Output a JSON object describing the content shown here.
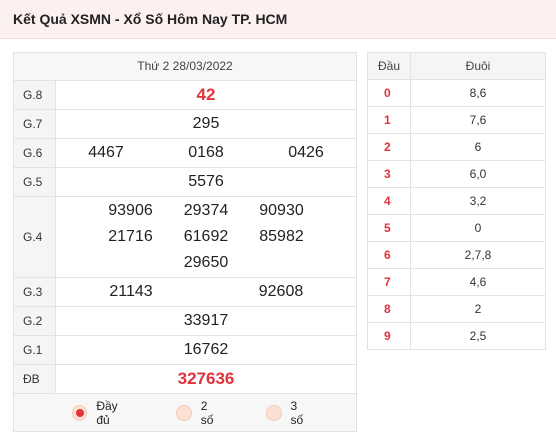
{
  "header": {
    "title": "Kết Quả XSMN - Xổ Số Hôm Nay TP. HCM"
  },
  "results": {
    "date": "Thứ 2 28/03/2022",
    "rows": [
      {
        "label": "G.8",
        "numbers": [
          "42"
        ]
      },
      {
        "label": "G.7",
        "numbers": [
          "295"
        ]
      },
      {
        "label": "G.6",
        "numbers": [
          "4467",
          "0168",
          "0426"
        ]
      },
      {
        "label": "G.5",
        "numbers": [
          "5576"
        ]
      },
      {
        "label": "G.4",
        "numbers": [
          "93906",
          "29374",
          "90930",
          "21716",
          "61692",
          "85982",
          "29650"
        ]
      },
      {
        "label": "G.3",
        "numbers": [
          "21143",
          "92608"
        ]
      },
      {
        "label": "G.2",
        "numbers": [
          "33917"
        ]
      },
      {
        "label": "G.1",
        "numbers": [
          "16762"
        ]
      },
      {
        "label": "ĐB",
        "numbers": [
          "327636"
        ]
      }
    ]
  },
  "options": [
    "Đầy đủ",
    "2 số",
    "3 số"
  ],
  "loto": {
    "headers": [
      "Đầu",
      "Đuôi"
    ],
    "rows": [
      [
        "0",
        "8,6"
      ],
      [
        "1",
        "7,6"
      ],
      [
        "2",
        "6"
      ],
      [
        "3",
        "6,0"
      ],
      [
        "4",
        "3,2"
      ],
      [
        "5",
        "0"
      ],
      [
        "6",
        "2,7,8"
      ],
      [
        "7",
        "4,6"
      ],
      [
        "8",
        "2"
      ],
      [
        "9",
        "2,5"
      ]
    ]
  }
}
